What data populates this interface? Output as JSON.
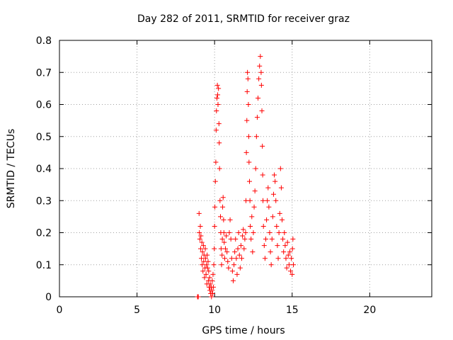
{
  "chart_data": {
    "type": "scatter",
    "title": "Day 282 of 2011, SRMTID for receiver graz",
    "xlabel": "GPS time / hours",
    "ylabel": "SRMTID / TECUs",
    "xlim": [
      0,
      24
    ],
    "ylim": [
      0,
      0.8
    ],
    "xticks": [
      0,
      5,
      10,
      15,
      20
    ],
    "yticks": [
      0,
      0.1,
      0.2,
      0.3,
      0.4,
      0.5,
      0.6,
      0.7,
      0.8
    ],
    "xtick_labels": [
      "0",
      "5",
      "10",
      "15",
      "20"
    ],
    "ytick_labels": [
      "0",
      "0.1",
      "0.2",
      "0.3",
      "0.4",
      "0.5",
      "0.6",
      "0.7",
      "0.8"
    ],
    "grid": true,
    "marker": "+",
    "series": [
      {
        "name": "SRMTID",
        "color": "#ff0000",
        "points": [
          [
            8.9,
            0.0
          ],
          [
            8.92,
            0.0
          ],
          [
            8.95,
            0.0
          ],
          [
            9.0,
            0.26
          ],
          [
            9.02,
            0.2
          ],
          [
            9.05,
            0.18
          ],
          [
            9.08,
            0.22
          ],
          [
            9.1,
            0.15
          ],
          [
            9.12,
            0.19
          ],
          [
            9.15,
            0.12
          ],
          [
            9.18,
            0.17
          ],
          [
            9.2,
            0.1
          ],
          [
            9.22,
            0.14
          ],
          [
            9.25,
            0.08
          ],
          [
            9.28,
            0.16
          ],
          [
            9.3,
            0.11
          ],
          [
            9.32,
            0.13
          ],
          [
            9.35,
            0.06
          ],
          [
            9.38,
            0.09
          ],
          [
            9.4,
            0.15
          ],
          [
            9.42,
            0.12
          ],
          [
            9.45,
            0.07
          ],
          [
            9.48,
            0.1
          ],
          [
            9.5,
            0.04
          ],
          [
            9.52,
            0.13
          ],
          [
            9.55,
            0.09
          ],
          [
            9.58,
            0.11
          ],
          [
            9.6,
            0.05
          ],
          [
            9.62,
            0.08
          ],
          [
            9.65,
            0.03
          ],
          [
            9.68,
            0.06
          ],
          [
            9.7,
            0.02
          ],
          [
            9.72,
            0.04
          ],
          [
            9.75,
            0.01
          ],
          [
            9.78,
            0.03
          ],
          [
            9.8,
            0.0
          ],
          [
            9.82,
            0.02
          ],
          [
            9.85,
            0.05
          ],
          [
            9.88,
            0.01
          ],
          [
            9.9,
            0.07
          ],
          [
            9.92,
            0.03
          ],
          [
            9.95,
            0.1
          ],
          [
            9.98,
            0.15
          ],
          [
            10.0,
            0.22
          ],
          [
            10.02,
            0.28
          ],
          [
            10.05,
            0.36
          ],
          [
            10.08,
            0.42
          ],
          [
            10.1,
            0.52
          ],
          [
            10.12,
            0.58
          ],
          [
            10.15,
            0.62
          ],
          [
            10.18,
            0.66
          ],
          [
            10.2,
            0.63
          ],
          [
            10.22,
            0.6
          ],
          [
            10.25,
            0.65
          ],
          [
            10.28,
            0.54
          ],
          [
            10.3,
            0.48
          ],
          [
            10.32,
            0.4
          ],
          [
            10.35,
            0.3
          ],
          [
            10.38,
            0.25
          ],
          [
            10.4,
            0.2
          ],
          [
            10.42,
            0.15
          ],
          [
            10.45,
            0.1
          ],
          [
            10.48,
            0.13
          ],
          [
            10.5,
            0.18
          ],
          [
            10.52,
            0.28
          ],
          [
            10.55,
            0.31
          ],
          [
            10.58,
            0.24
          ],
          [
            10.6,
            0.2
          ],
          [
            10.62,
            0.17
          ],
          [
            10.65,
            0.12
          ],
          [
            10.7,
            0.15
          ],
          [
            10.75,
            0.19
          ],
          [
            10.8,
            0.14
          ],
          [
            10.85,
            0.11
          ],
          [
            10.9,
            0.09
          ],
          [
            10.95,
            0.2
          ],
          [
            11.0,
            0.24
          ],
          [
            11.05,
            0.18
          ],
          [
            11.1,
            0.12
          ],
          [
            11.15,
            0.08
          ],
          [
            11.2,
            0.05
          ],
          [
            11.25,
            0.1
          ],
          [
            11.3,
            0.14
          ],
          [
            11.35,
            0.18
          ],
          [
            11.4,
            0.12
          ],
          [
            11.45,
            0.07
          ],
          [
            11.5,
            0.15
          ],
          [
            11.55,
            0.2
          ],
          [
            11.6,
            0.13
          ],
          [
            11.65,
            0.09
          ],
          [
            11.7,
            0.16
          ],
          [
            11.75,
            0.12
          ],
          [
            11.8,
            0.19
          ],
          [
            11.85,
            0.21
          ],
          [
            11.9,
            0.15
          ],
          [
            11.95,
            0.18
          ],
          [
            12.0,
            0.2
          ],
          [
            12.02,
            0.3
          ],
          [
            12.05,
            0.45
          ],
          [
            12.08,
            0.55
          ],
          [
            12.1,
            0.64
          ],
          [
            12.12,
            0.7
          ],
          [
            12.15,
            0.68
          ],
          [
            12.18,
            0.6
          ],
          [
            12.2,
            0.5
          ],
          [
            12.22,
            0.42
          ],
          [
            12.25,
            0.36
          ],
          [
            12.28,
            0.3
          ],
          [
            12.3,
            0.22
          ],
          [
            12.35,
            0.18
          ],
          [
            12.4,
            0.25
          ],
          [
            12.45,
            0.14
          ],
          [
            12.5,
            0.2
          ],
          [
            12.55,
            0.28
          ],
          [
            12.6,
            0.33
          ],
          [
            12.65,
            0.4
          ],
          [
            12.7,
            0.5
          ],
          [
            12.75,
            0.56
          ],
          [
            12.8,
            0.62
          ],
          [
            12.85,
            0.68
          ],
          [
            12.9,
            0.72
          ],
          [
            12.95,
            0.75
          ],
          [
            13.0,
            0.7
          ],
          [
            13.02,
            0.66
          ],
          [
            13.05,
            0.58
          ],
          [
            13.08,
            0.47
          ],
          [
            13.1,
            0.38
          ],
          [
            13.12,
            0.3
          ],
          [
            13.15,
            0.22
          ],
          [
            13.2,
            0.16
          ],
          [
            13.25,
            0.12
          ],
          [
            13.3,
            0.18
          ],
          [
            13.35,
            0.24
          ],
          [
            13.4,
            0.3
          ],
          [
            13.45,
            0.34
          ],
          [
            13.5,
            0.28
          ],
          [
            13.55,
            0.2
          ],
          [
            13.6,
            0.14
          ],
          [
            13.65,
            0.1
          ],
          [
            13.7,
            0.18
          ],
          [
            13.75,
            0.25
          ],
          [
            13.8,
            0.32
          ],
          [
            13.85,
            0.38
          ],
          [
            13.9,
            0.36
          ],
          [
            13.95,
            0.3
          ],
          [
            14.0,
            0.22
          ],
          [
            14.05,
            0.16
          ],
          [
            14.1,
            0.12
          ],
          [
            14.15,
            0.2
          ],
          [
            14.2,
            0.26
          ],
          [
            14.25,
            0.4
          ],
          [
            14.3,
            0.34
          ],
          [
            14.35,
            0.24
          ],
          [
            14.4,
            0.18
          ],
          [
            14.45,
            0.14
          ],
          [
            14.5,
            0.2
          ],
          [
            14.55,
            0.16
          ],
          [
            14.6,
            0.12
          ],
          [
            14.65,
            0.09
          ],
          [
            14.7,
            0.17
          ],
          [
            14.75,
            0.13
          ],
          [
            14.8,
            0.1
          ],
          [
            14.85,
            0.14
          ],
          [
            14.9,
            0.08
          ],
          [
            14.95,
            0.12
          ],
          [
            15.0,
            0.07
          ],
          [
            15.02,
            0.15
          ],
          [
            15.05,
            0.18
          ],
          [
            15.08,
            0.1
          ]
        ]
      }
    ]
  }
}
